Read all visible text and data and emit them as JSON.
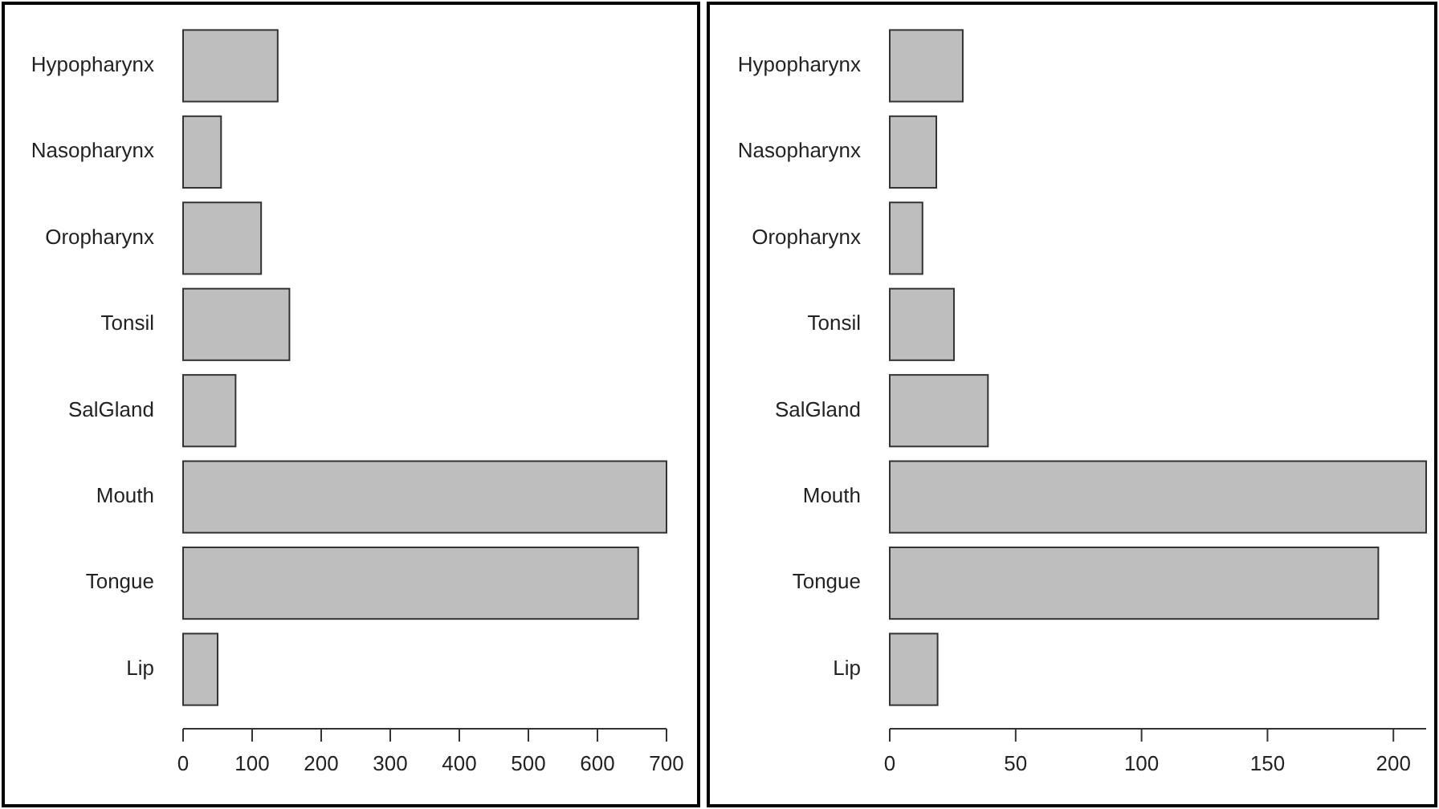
{
  "chart_data": [
    {
      "type": "bar",
      "orientation": "horizontal",
      "categories": [
        "Hypopharynx",
        "Nasopharynx",
        "Oropharynx",
        "Tonsil",
        "SalGland",
        "Mouth",
        "Tongue",
        "Lip"
      ],
      "values": [
        137,
        55,
        113,
        154,
        76,
        700,
        659,
        50
      ],
      "color": "#bebebe",
      "xlim": [
        0,
        700
      ],
      "xticks": [
        0,
        100,
        200,
        300,
        400,
        500,
        600,
        700
      ]
    },
    {
      "type": "bar",
      "orientation": "horizontal",
      "categories": [
        "Hypopharynx",
        "Nasopharynx",
        "Oropharynx",
        "Tonsil",
        "SalGland",
        "Mouth",
        "Tongue",
        "Lip"
      ],
      "values": [
        29,
        18.5,
        13,
        25.5,
        39,
        213,
        194,
        19
      ],
      "color": "#bebebe",
      "xlim": [
        0,
        213
      ],
      "xticks": [
        0,
        50,
        100,
        150,
        200
      ]
    }
  ]
}
